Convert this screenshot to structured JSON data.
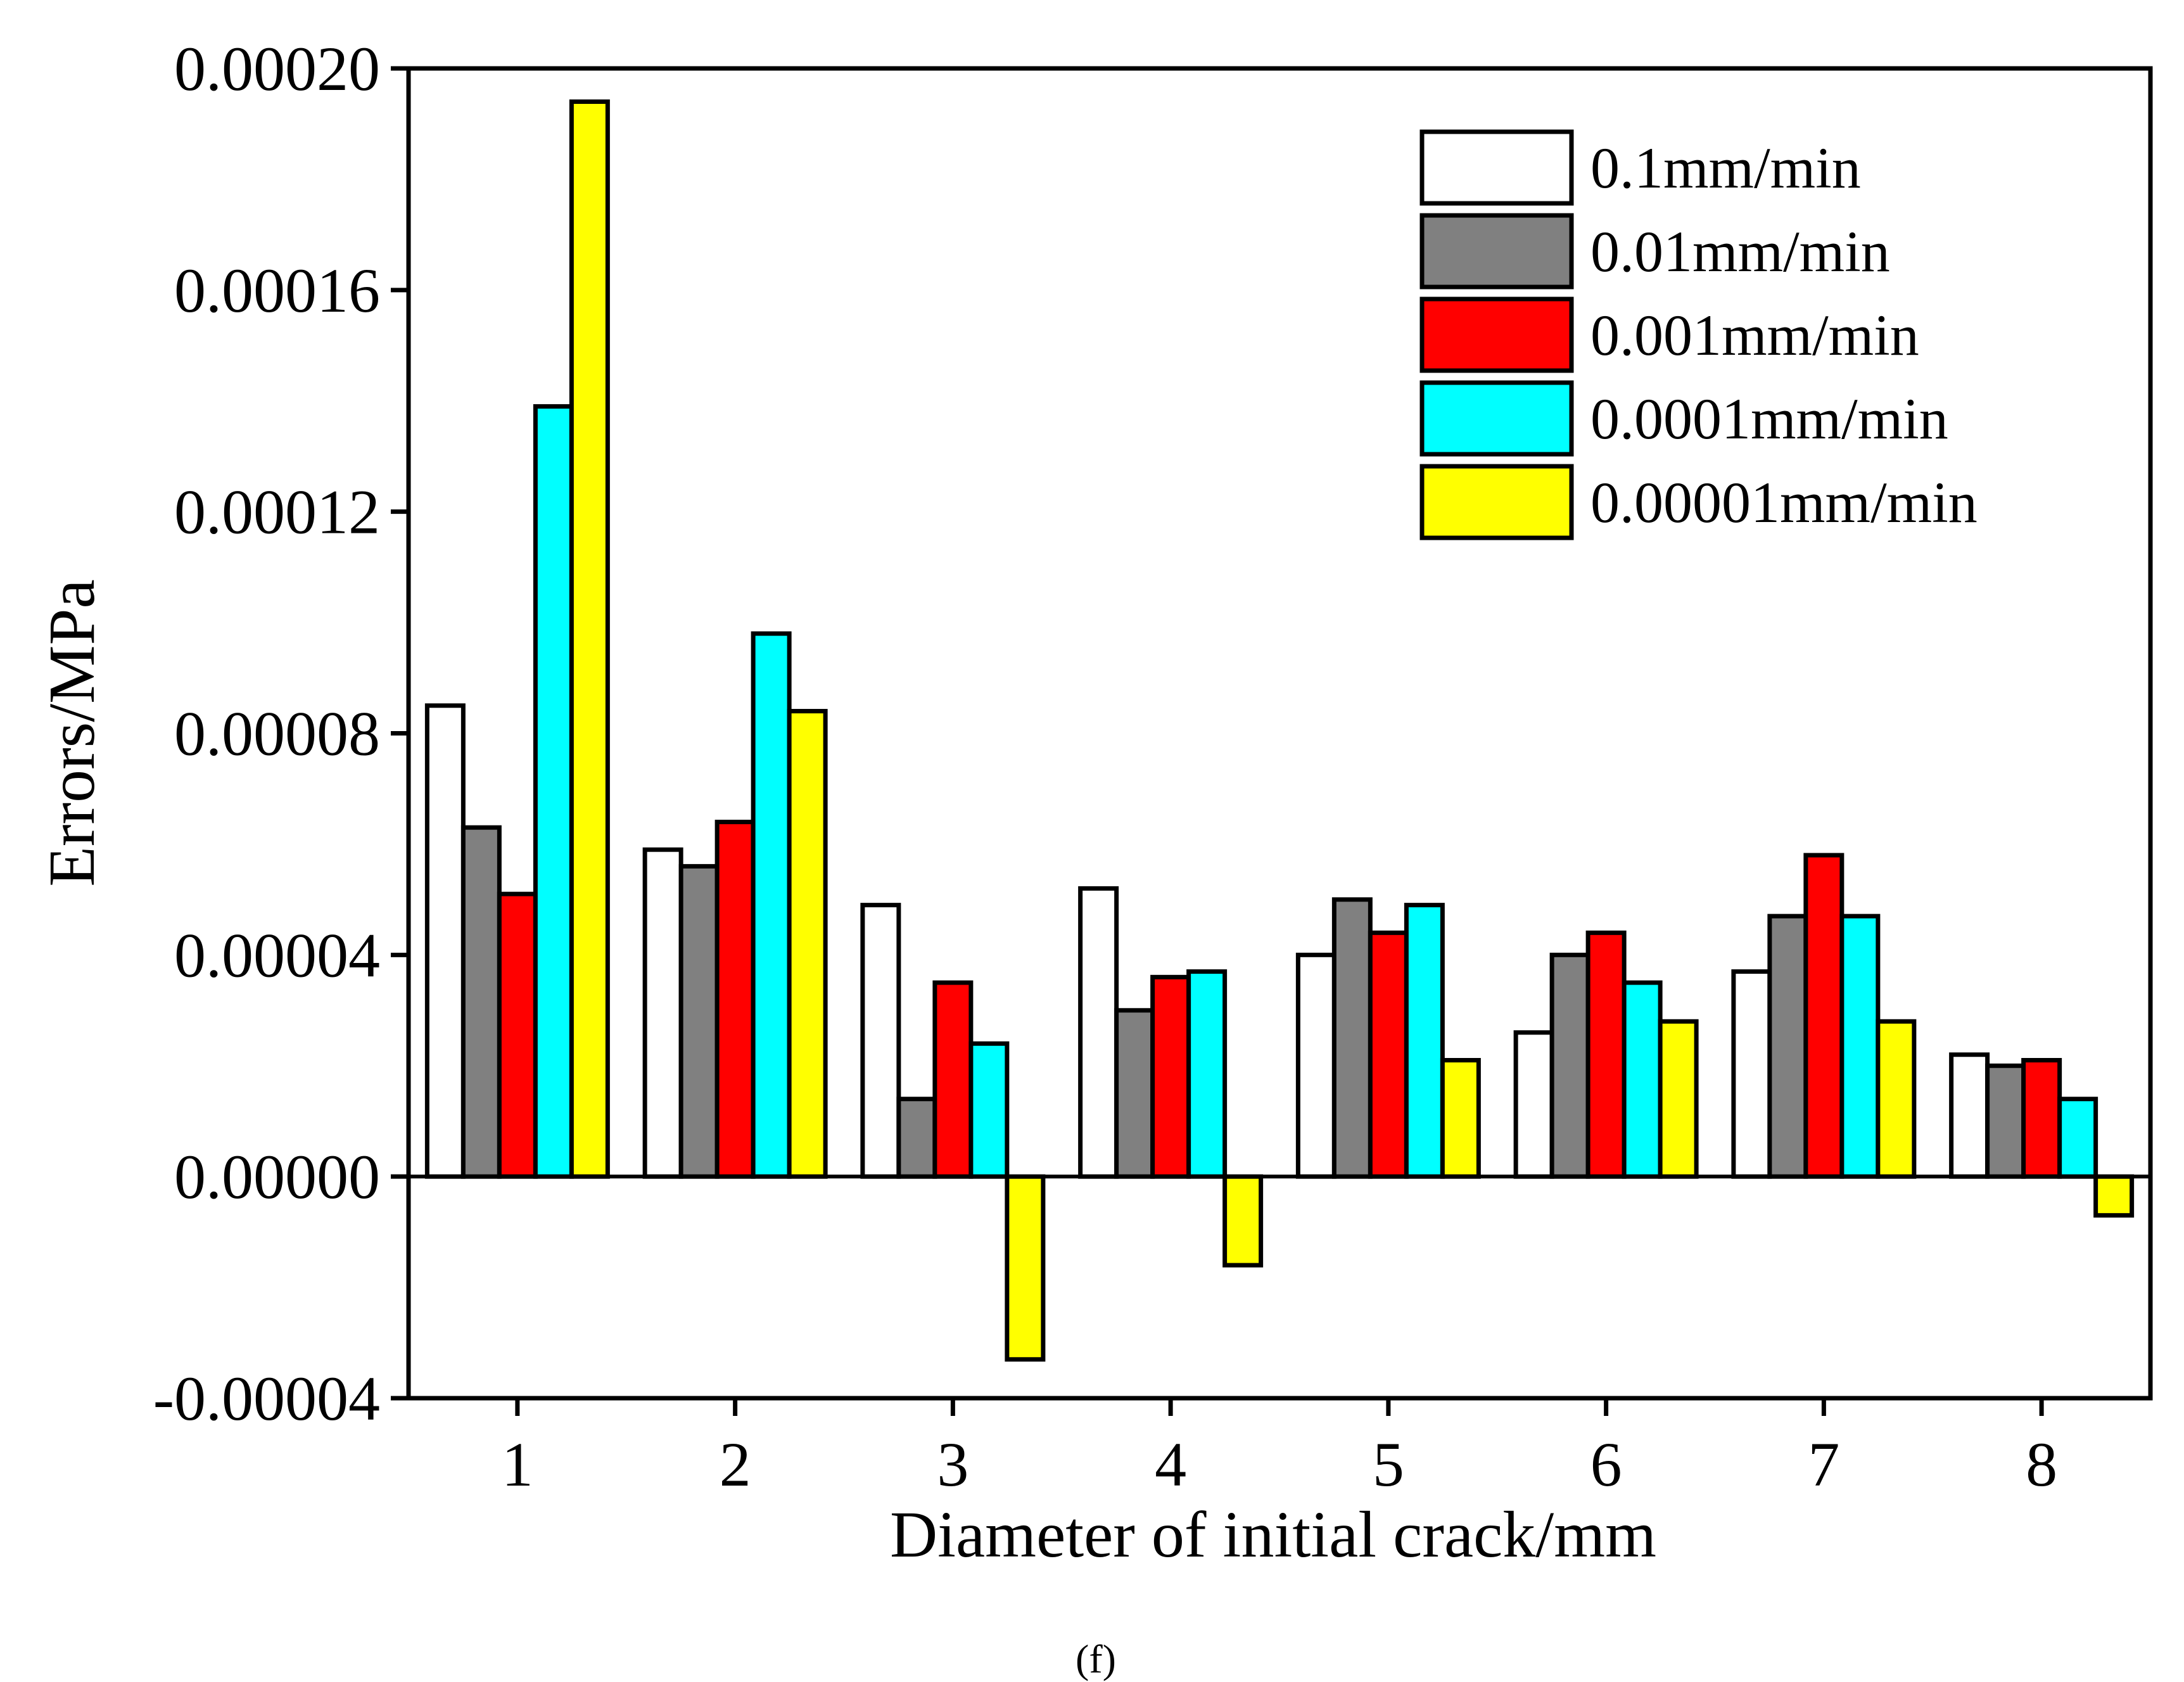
{
  "chart_data": {
    "type": "bar",
    "title": "",
    "caption": "(f)",
    "xlabel": "Diameter of initial crack/mm",
    "ylabel": "Errors/MPa",
    "ylim": [
      -4e-05,
      0.0002
    ],
    "yticks": [
      -4e-05,
      0.0,
      4e-05,
      8e-05,
      0.00012,
      0.00016,
      0.0002
    ],
    "ytick_labels": [
      "-0.00004",
      "0.00000",
      "0.00004",
      "0.00008",
      "0.00012",
      "0.00016",
      "0.00020"
    ],
    "categories": [
      "1",
      "2",
      "3",
      "4",
      "5",
      "6",
      "7",
      "8"
    ],
    "legend_position": "top-right",
    "series": [
      {
        "name": "0.1mm/min",
        "color": "#ffffff",
        "values": [
          8.5e-05,
          5.9e-05,
          4.9e-05,
          5.2e-05,
          4e-05,
          2.6e-05,
          3.7e-05,
          2.2e-05
        ]
      },
      {
        "name": "0.01mm/min",
        "color": "#808080",
        "values": [
          6.3e-05,
          5.6e-05,
          1.4e-05,
          3e-05,
          5e-05,
          4e-05,
          4.7e-05,
          2e-05
        ]
      },
      {
        "name": "0.001mm/min",
        "color": "#ff0000",
        "values": [
          5.1e-05,
          6.4e-05,
          3.5e-05,
          3.6e-05,
          4.4e-05,
          4.4e-05,
          5.8e-05,
          2.1e-05
        ]
      },
      {
        "name": "0.0001mm/min",
        "color": "#00ffff",
        "values": [
          0.000139,
          9.8e-05,
          2.4e-05,
          3.7e-05,
          4.9e-05,
          3.5e-05,
          4.7e-05,
          1.4e-05
        ]
      },
      {
        "name": "0.00001mm/min",
        "color": "#ffff00",
        "values": [
          0.000194,
          8.4e-05,
          -3.3e-05,
          -1.6e-05,
          2.1e-05,
          2.8e-05,
          2.8e-05,
          -7e-06
        ]
      }
    ]
  }
}
